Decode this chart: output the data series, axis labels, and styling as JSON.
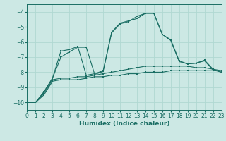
{
  "xlabel": "Humidex (Indice chaleur)",
  "background_color": "#cce8e4",
  "grid_color": "#b0d8d2",
  "line_color": "#1a6e64",
  "xlim": [
    0,
    23
  ],
  "ylim": [
    -10.5,
    -3.5
  ],
  "yticks": [
    -10,
    -9,
    -8,
    -7,
    -6,
    -5,
    -4
  ],
  "xticks": [
    0,
    1,
    2,
    3,
    4,
    5,
    6,
    7,
    8,
    9,
    10,
    11,
    12,
    13,
    14,
    15,
    16,
    17,
    18,
    19,
    20,
    21,
    22,
    23
  ],
  "curves": [
    {
      "x": [
        0,
        1,
        2,
        3,
        4,
        5,
        6,
        7,
        8,
        9,
        10,
        11,
        12,
        13,
        14,
        15,
        16,
        17,
        18,
        19,
        20,
        21,
        22,
        23
      ],
      "y": [
        -10.0,
        -10.0,
        -9.5,
        -8.6,
        -8.5,
        -8.5,
        -8.5,
        -8.4,
        -8.3,
        -8.3,
        -8.2,
        -8.2,
        -8.1,
        -8.1,
        -8.0,
        -8.0,
        -8.0,
        -7.9,
        -7.9,
        -7.9,
        -7.9,
        -7.9,
        -7.9,
        -7.9
      ]
    },
    {
      "x": [
        0,
        1,
        2,
        3,
        4,
        5,
        6,
        7,
        8,
        9,
        10,
        11,
        12,
        13,
        14,
        15,
        16,
        17,
        18,
        19,
        20,
        21,
        22,
        23
      ],
      "y": [
        -10.0,
        -10.0,
        -9.4,
        -8.5,
        -8.4,
        -8.4,
        -8.3,
        -8.3,
        -8.2,
        -8.1,
        -8.0,
        -7.9,
        -7.8,
        -7.7,
        -7.6,
        -7.6,
        -7.6,
        -7.6,
        -7.6,
        -7.6,
        -7.7,
        -7.7,
        -7.8,
        -7.9
      ]
    },
    {
      "x": [
        0,
        1,
        2,
        3,
        4,
        5,
        6,
        7,
        8,
        9,
        10,
        11,
        12,
        13,
        14,
        15,
        16,
        17,
        18,
        19,
        20,
        21,
        22,
        23
      ],
      "y": [
        -10.0,
        -10.0,
        -9.3,
        -8.4,
        -6.6,
        -6.5,
        -6.3,
        -8.2,
        -8.1,
        -7.9,
        -5.4,
        -4.8,
        -4.65,
        -4.3,
        -4.1,
        -4.1,
        -5.5,
        -5.85,
        -7.25,
        -7.45,
        -7.4,
        -7.25,
        -7.85,
        -8.0
      ]
    },
    {
      "x": [
        0,
        1,
        2,
        3,
        4,
        5,
        6,
        7,
        8,
        9,
        10,
        11,
        12,
        13,
        14,
        15,
        16,
        17,
        18,
        19,
        20,
        21,
        22,
        23
      ],
      "y": [
        -10.0,
        -10.0,
        -9.3,
        -8.4,
        -7.0,
        -6.65,
        -6.35,
        -6.35,
        -8.15,
        -7.95,
        -5.35,
        -4.75,
        -4.6,
        -4.45,
        -4.1,
        -4.1,
        -5.5,
        -5.9,
        -7.3,
        -7.45,
        -7.4,
        -7.2,
        -7.8,
        -8.0
      ]
    }
  ]
}
